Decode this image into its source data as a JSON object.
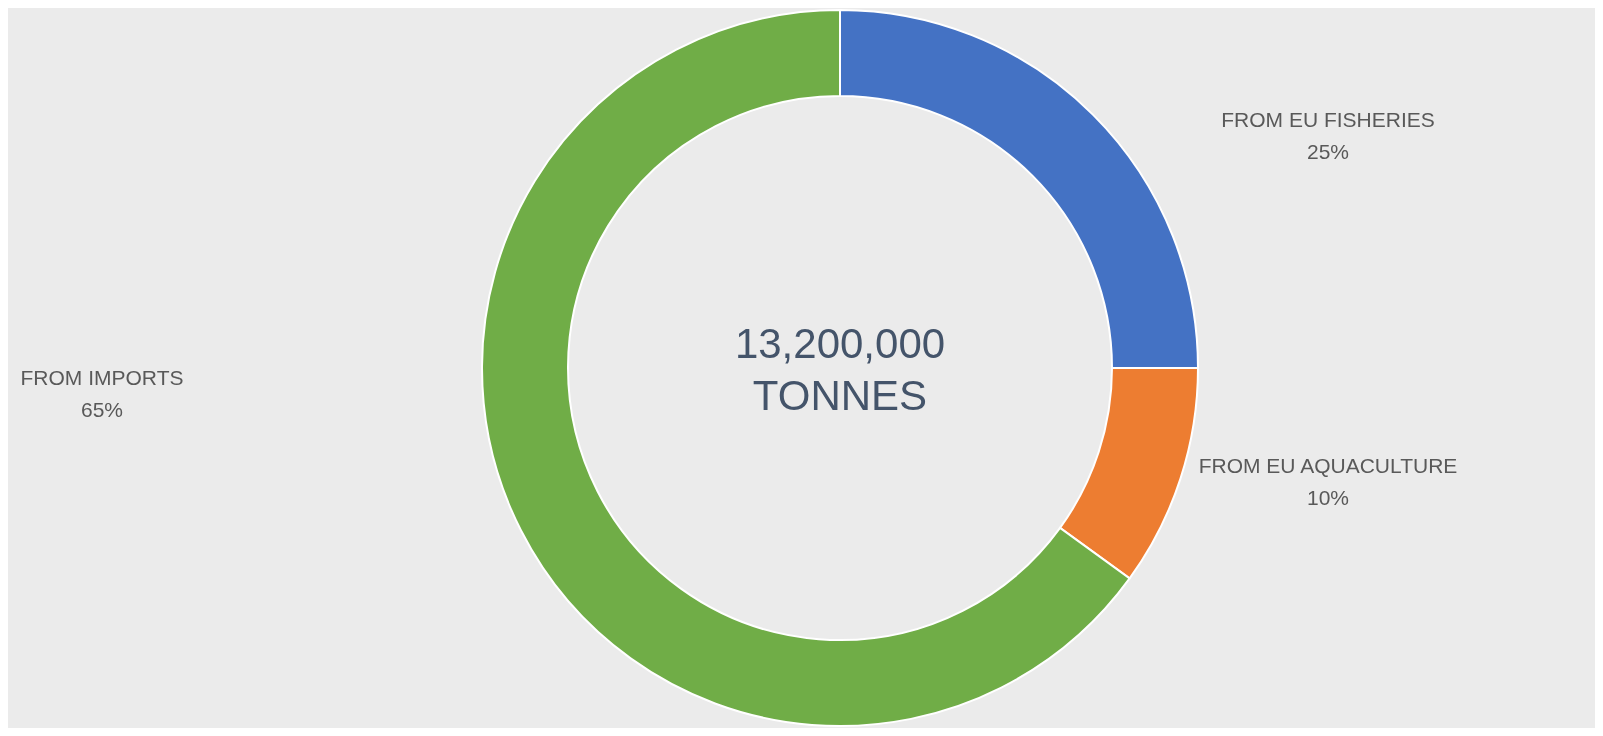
{
  "chart_data": {
    "type": "donut",
    "categories": [
      "FROM EU FISHERIES",
      "FROM EU AQUACULTURE",
      "FROM IMPORTS"
    ],
    "values": [
      25,
      10,
      65
    ],
    "colors": [
      "#4472c4",
      "#ed7d31",
      "#70ad47"
    ],
    "value_labels": [
      "25%",
      "10%",
      "65%"
    ],
    "annotations": [
      "13,200,000 TONNES"
    ]
  }
}
